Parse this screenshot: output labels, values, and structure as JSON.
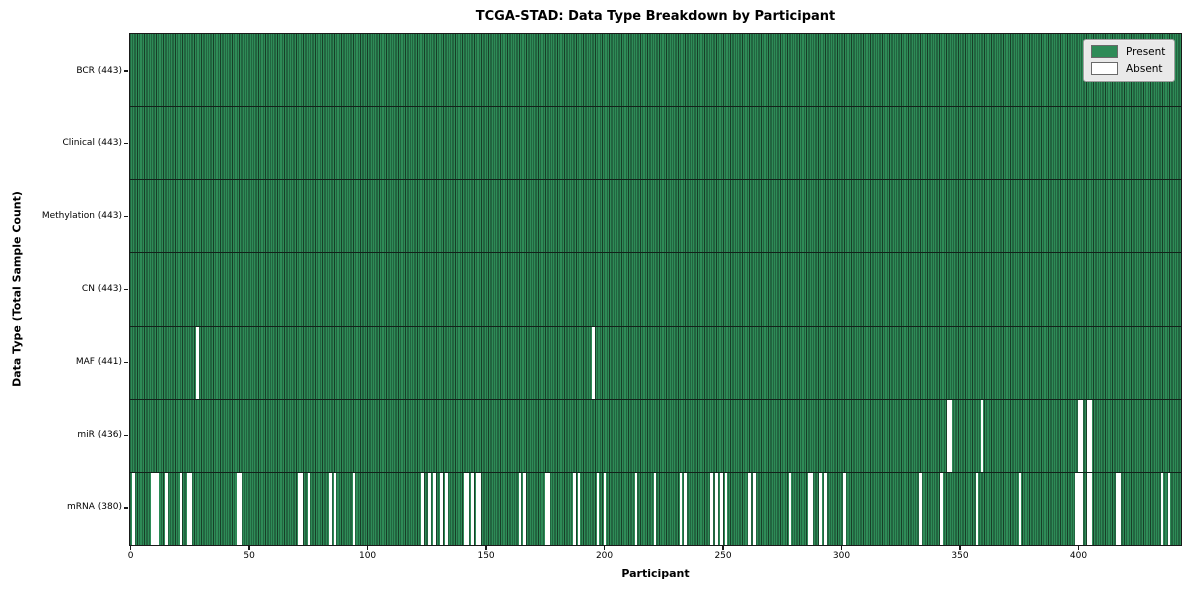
{
  "chart_data": {
    "type": "heatmap",
    "title": "TCGA-STAD: Data Type Breakdown by Participant",
    "xlabel": "Participant",
    "ylabel": "Data Type (Total Sample Count)",
    "x_ticks": [
      0,
      50,
      100,
      150,
      200,
      250,
      300,
      350,
      400
    ],
    "x_range": [
      0,
      443
    ],
    "n_participants": 443,
    "grid": false,
    "legend_position": "upper right",
    "legend": [
      {
        "label": "Present",
        "color": "#2e8b57"
      },
      {
        "label": "Absent",
        "color": "#ffffff"
      }
    ],
    "rows": [
      {
        "label": "BCR (443)",
        "name": "BCR",
        "present": 443,
        "absent": []
      },
      {
        "label": "Clinical (443)",
        "name": "Clinical",
        "present": 443,
        "absent": []
      },
      {
        "label": "Methylation (443)",
        "name": "Methylation",
        "present": 443,
        "absent": []
      },
      {
        "label": "CN (443)",
        "name": "CN",
        "present": 443,
        "absent": []
      },
      {
        "label": "MAF (441)",
        "name": "MAF",
        "present": 441,
        "absent": [
          28,
          195
        ]
      },
      {
        "label": "miR (436)",
        "name": "miR",
        "present": 436,
        "absent": [
          345,
          346,
          359,
          400,
          401,
          404,
          405
        ]
      },
      {
        "label": "mRNA (380)",
        "name": "mRNA",
        "present": 380,
        "absent": [
          1,
          9,
          10,
          11,
          15,
          21,
          24,
          25,
          45,
          46,
          71,
          72,
          75,
          84,
          86,
          94,
          123,
          126,
          128,
          131,
          133,
          141,
          142,
          144,
          146,
          147,
          164,
          166,
          175,
          176,
          187,
          189,
          197,
          200,
          213,
          221,
          232,
          234,
          245,
          247,
          249,
          251,
          261,
          263,
          278,
          286,
          287,
          291,
          293,
          301,
          333,
          342,
          357,
          375,
          399,
          400,
          401,
          404,
          405,
          416,
          417,
          435,
          438
        ]
      }
    ],
    "colors": {
      "present": "#2e8b57",
      "absent": "#ffffff",
      "bar_edge": "#173f28",
      "plot_border": "#1a1a1a",
      "legend_bg": "#e9e9e9",
      "legend_border": "#9e9e9e",
      "text": "#000000"
    }
  }
}
